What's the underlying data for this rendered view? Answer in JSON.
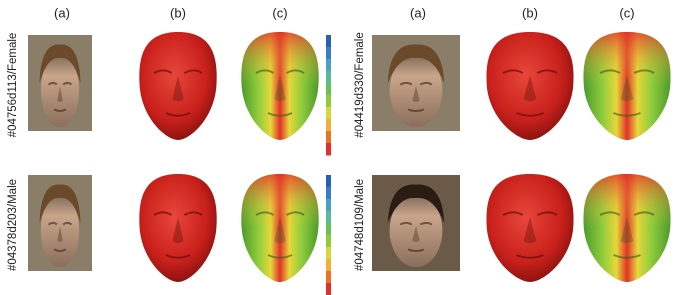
{
  "panels": [
    {
      "column_labels": [
        "(a)",
        "(b)",
        "(c)"
      ],
      "rows": [
        "#04756d113/Female",
        "#04378d203/Male"
      ]
    },
    {
      "column_labels": [
        "(a)",
        "(b)",
        "(c)"
      ],
      "rows": [
        "#04419d330/Female",
        "#04748d109/Male"
      ]
    }
  ]
}
